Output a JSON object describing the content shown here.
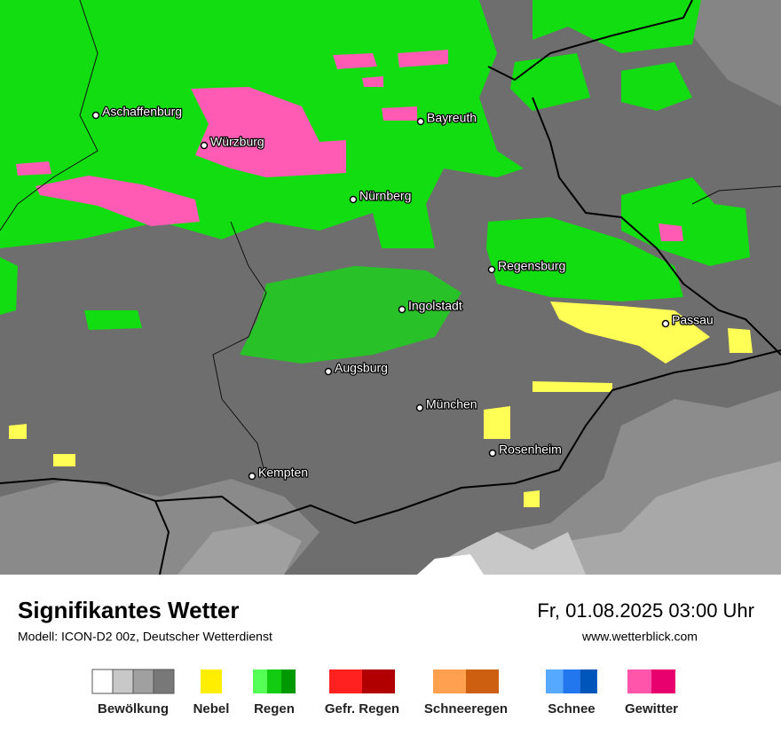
{
  "map": {
    "cities": [
      "Aschaffenburg",
      "Würzburg",
      "Bayreuth",
      "Nürnberg",
      "Regensburg",
      "Ingolstadt",
      "Passau",
      "Augsburg",
      "München",
      "Rosenheim",
      "Kempten"
    ]
  },
  "footer": {
    "title": "Signifikantes Wetter",
    "subtitle": "Modell: ICON-D2 00z, Deutscher Wetterdienst",
    "date": "Fr, 01.08.2025 03:00 Uhr",
    "website": "www.wetterblick.com"
  },
  "legend": [
    {
      "label": "Bewölkung",
      "colors": [
        "#ffffff",
        "#c8c8c8",
        "#a0a0a0",
        "#787878"
      ]
    },
    {
      "label": "Nebel",
      "colors": [
        "#ffee00"
      ]
    },
    {
      "label": "Regen",
      "colors": [
        "#55ff55",
        "#11cc11",
        "#009900"
      ]
    },
    {
      "label": "Gefr. Regen",
      "colors": [
        "#ff2020",
        "#b00000"
      ]
    },
    {
      "label": "Schneeregen",
      "colors": [
        "#ffa050",
        "#cc6010"
      ]
    },
    {
      "label": "Schnee",
      "colors": [
        "#55aaff",
        "#2277ee",
        "#0055bb"
      ]
    },
    {
      "label": "Gewitter",
      "colors": [
        "#ff55aa",
        "#e8006e"
      ]
    }
  ]
}
